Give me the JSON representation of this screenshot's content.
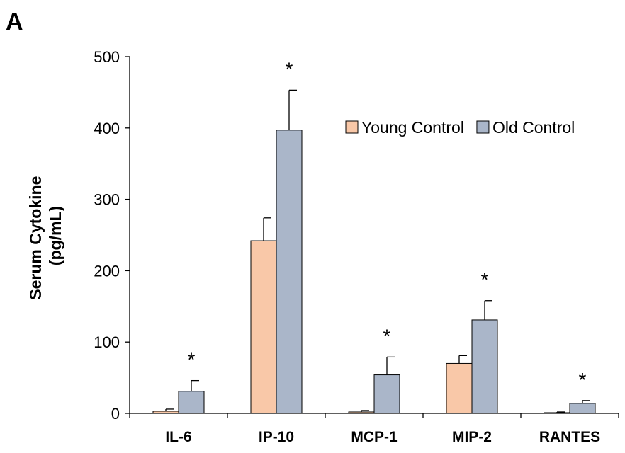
{
  "panel_label": "A",
  "chart_data": {
    "type": "bar",
    "title": "",
    "ylabel_lines": [
      "Serum Cytokine",
      "(pg/mL)"
    ],
    "xlabel": "",
    "ylim": [
      0,
      500
    ],
    "yticks": [
      0,
      100,
      200,
      300,
      400,
      500
    ],
    "grid": false,
    "legend_position": "top-right",
    "categories": [
      "IL-6",
      "IP-10",
      "MCP-1",
      "MIP-2",
      "RANTES"
    ],
    "series": [
      {
        "name": "Young Control",
        "color": "#F9C8A8",
        "values": [
          3,
          242,
          2,
          70,
          1
        ],
        "errors": [
          3,
          32,
          2,
          11,
          1
        ]
      },
      {
        "name": "Old Control",
        "color": "#AAB6C9",
        "values": [
          31,
          397,
          54,
          131,
          14
        ],
        "errors": [
          15,
          56,
          25,
          27,
          4
        ]
      }
    ],
    "annotations": [
      "*",
      "*",
      "*",
      "*",
      "*"
    ]
  }
}
